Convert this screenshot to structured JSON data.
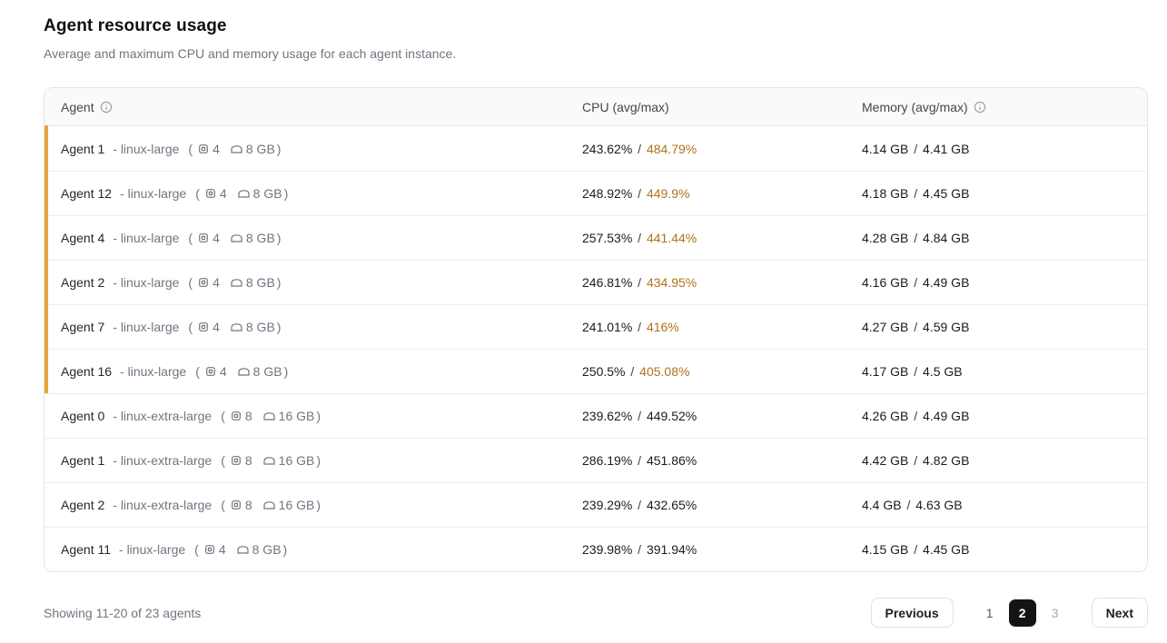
{
  "page": {
    "title": "Agent resource usage",
    "subtitle": "Average and maximum CPU and memory usage for each agent instance."
  },
  "table": {
    "columns": [
      {
        "label": "Agent",
        "info_icon": true
      },
      {
        "label": "CPU (avg/max)",
        "info_icon": false
      },
      {
        "label": "Memory (avg/max)",
        "info_icon": true
      }
    ],
    "value_separator": "/",
    "rows": [
      {
        "name": "Agent 1",
        "tier": "linux-large",
        "cpus": "4",
        "memory": "8 GB",
        "cpu_avg": "243.62%",
        "cpu_max": "484.79%",
        "cpu_max_warning": true,
        "mem_avg": "4.14 GB",
        "mem_max": "4.41 GB",
        "highlight": true
      },
      {
        "name": "Agent 12",
        "tier": "linux-large",
        "cpus": "4",
        "memory": "8 GB",
        "cpu_avg": "248.92%",
        "cpu_max": "449.9%",
        "cpu_max_warning": true,
        "mem_avg": "4.18 GB",
        "mem_max": "4.45 GB",
        "highlight": true
      },
      {
        "name": "Agent 4",
        "tier": "linux-large",
        "cpus": "4",
        "memory": "8 GB",
        "cpu_avg": "257.53%",
        "cpu_max": "441.44%",
        "cpu_max_warning": true,
        "mem_avg": "4.28 GB",
        "mem_max": "4.84 GB",
        "highlight": true
      },
      {
        "name": "Agent 2",
        "tier": "linux-large",
        "cpus": "4",
        "memory": "8 GB",
        "cpu_avg": "246.81%",
        "cpu_max": "434.95%",
        "cpu_max_warning": true,
        "mem_avg": "4.16 GB",
        "mem_max": "4.49 GB",
        "highlight": true
      },
      {
        "name": "Agent 7",
        "tier": "linux-large",
        "cpus": "4",
        "memory": "8 GB",
        "cpu_avg": "241.01%",
        "cpu_max": "416%",
        "cpu_max_warning": true,
        "mem_avg": "4.27 GB",
        "mem_max": "4.59 GB",
        "highlight": true
      },
      {
        "name": "Agent 16",
        "tier": "linux-large",
        "cpus": "4",
        "memory": "8 GB",
        "cpu_avg": "250.5%",
        "cpu_max": "405.08%",
        "cpu_max_warning": true,
        "mem_avg": "4.17 GB",
        "mem_max": "4.5 GB",
        "highlight": true
      },
      {
        "name": "Agent 0",
        "tier": "linux-extra-large",
        "cpus": "8",
        "memory": "16 GB",
        "cpu_avg": "239.62%",
        "cpu_max": "449.52%",
        "cpu_max_warning": false,
        "mem_avg": "4.26 GB",
        "mem_max": "4.49 GB",
        "highlight": false
      },
      {
        "name": "Agent 1",
        "tier": "linux-extra-large",
        "cpus": "8",
        "memory": "16 GB",
        "cpu_avg": "286.19%",
        "cpu_max": "451.86%",
        "cpu_max_warning": false,
        "mem_avg": "4.42 GB",
        "mem_max": "4.82 GB",
        "highlight": false
      },
      {
        "name": "Agent 2",
        "tier": "linux-extra-large",
        "cpus": "8",
        "memory": "16 GB",
        "cpu_avg": "239.29%",
        "cpu_max": "432.65%",
        "cpu_max_warning": false,
        "mem_avg": "4.4 GB",
        "mem_max": "4.63 GB",
        "highlight": false
      },
      {
        "name": "Agent 11",
        "tier": "linux-large",
        "cpus": "4",
        "memory": "8 GB",
        "cpu_avg": "239.98%",
        "cpu_max": "391.94%",
        "cpu_max_warning": false,
        "mem_avg": "4.15 GB",
        "mem_max": "4.45 GB",
        "highlight": false
      }
    ]
  },
  "footer": {
    "showing_text": "Showing 11-20 of 23 agents",
    "pagination": {
      "previous_label": "Previous",
      "next_label": "Next",
      "pages": [
        {
          "label": "1",
          "active": false,
          "muted": false
        },
        {
          "label": "2",
          "active": true,
          "muted": false
        },
        {
          "label": "3",
          "active": false,
          "muted": true
        }
      ]
    }
  },
  "colors": {
    "warning_text": "#b0731b",
    "warning_stripe": "#e9a53a",
    "active_page_bg": "#141417"
  }
}
